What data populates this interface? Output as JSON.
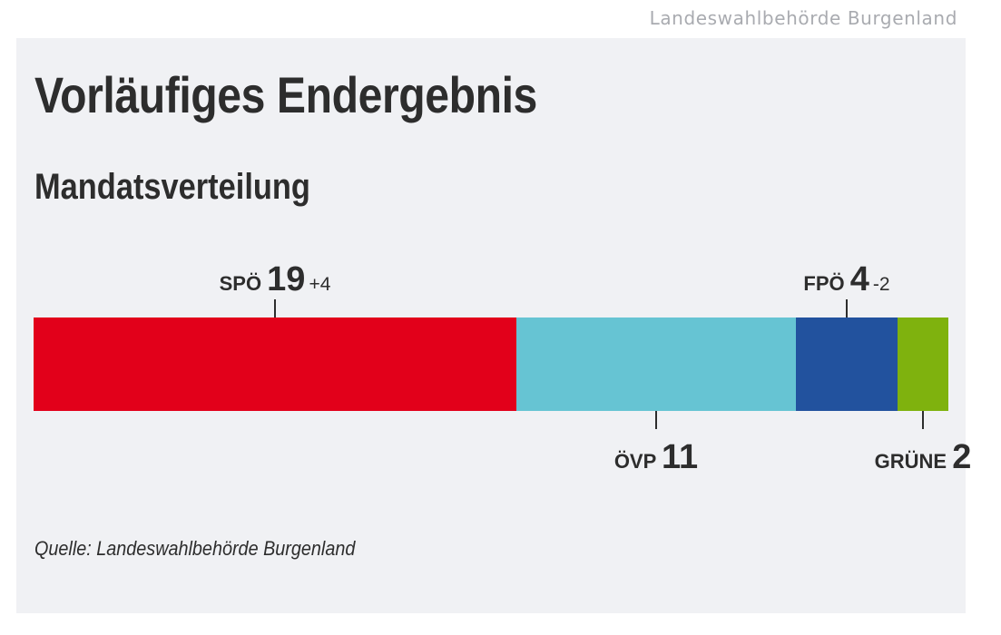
{
  "credit": "Landeswahlbehörde Burgenland",
  "source": "Quelle: Landeswahlbehörde Burgenland",
  "chart_data": {
    "type": "bar",
    "orientation": "stacked-horizontal",
    "title": "Vorläufiges Endergebnis",
    "subtitle": "Mandatsverteilung",
    "total": 36,
    "grid": false,
    "legend": "none",
    "categories": [
      "SPÖ",
      "ÖVP",
      "FPÖ",
      "GRÜNE"
    ],
    "values": [
      19,
      11,
      4,
      2
    ],
    "changes": [
      "+4",
      "",
      "-2",
      ""
    ],
    "label_positions": [
      "top",
      "bottom",
      "top",
      "bottom"
    ],
    "colors": [
      "#e2001a",
      "#66c4d3",
      "#22529e",
      "#7fb20e"
    ]
  }
}
